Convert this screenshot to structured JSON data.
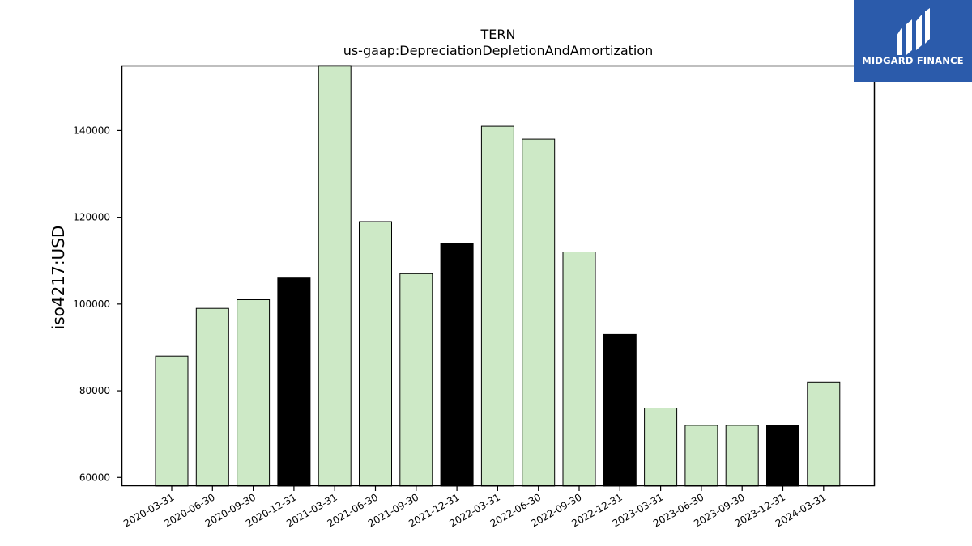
{
  "chart_data": {
    "type": "bar",
    "title": "TERN",
    "subtitle": "us-gaap:DepreciationDepletionAndAmortization",
    "ylabel": "iso4217:USD",
    "xlabel": "",
    "ylim": [
      58000,
      155000
    ],
    "yticks": [
      60000,
      80000,
      100000,
      120000,
      140000
    ],
    "grid": false,
    "categories": [
      "2020-03-31",
      "2020-06-30",
      "2020-09-30",
      "2020-12-31",
      "2021-03-31",
      "2021-06-30",
      "2021-09-30",
      "2021-12-31",
      "2022-03-31",
      "2022-06-30",
      "2022-09-30",
      "2022-12-31",
      "2023-03-31",
      "2023-06-30",
      "2023-09-30",
      "2023-12-31",
      "2024-03-31"
    ],
    "values": [
      88000,
      99000,
      101000,
      106000,
      155000,
      119000,
      107000,
      114000,
      141000,
      138000,
      112000,
      93000,
      76000,
      72000,
      72000,
      72000,
      82000
    ],
    "bar_colors": [
      "#cde9c6",
      "#cde9c6",
      "#cde9c6",
      "#000000",
      "#cde9c6",
      "#cde9c6",
      "#cde9c6",
      "#000000",
      "#cde9c6",
      "#cde9c6",
      "#cde9c6",
      "#000000",
      "#cde9c6",
      "#cde9c6",
      "#cde9c6",
      "#000000",
      "#cde9c6"
    ]
  },
  "logo": {
    "text": "MIDGARD FINANCE",
    "background": "#2b5bab"
  }
}
